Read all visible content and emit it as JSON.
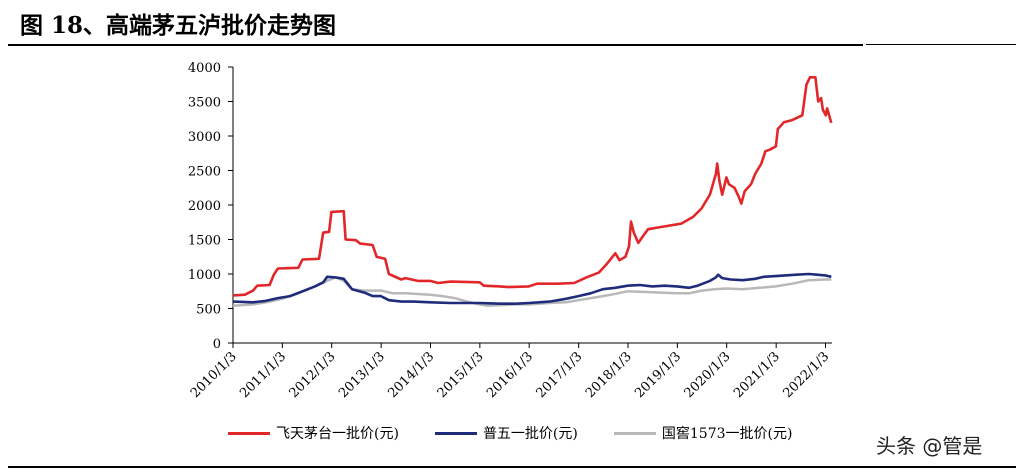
{
  "title": "图 18、高端茅五泸批价走势图",
  "watermark": "头条 @管是",
  "colors": {
    "moutai": "#e2272a",
    "wuliangye": "#1f2c7c",
    "guojiao": "#b8b8b8"
  },
  "chart_data": {
    "type": "line",
    "title": "",
    "xlabel": "",
    "ylabel": "",
    "ylim": [
      0,
      4000
    ],
    "yticks": [
      "0",
      "500",
      "1000",
      "1500",
      "2000",
      "2500",
      "3000",
      "3500",
      "4000"
    ],
    "xlim": [
      "2010-01-03",
      "2022-02-20"
    ],
    "xticks": [
      "2010/1/3",
      "2011/1/3",
      "2012/1/3",
      "2013/1/3",
      "2014/1/3",
      "2015/1/3",
      "2016/1/3",
      "2017/1/3",
      "2018/1/3",
      "2019/1/3",
      "2020/1/3",
      "2021/1/3",
      "2022/1/3"
    ],
    "grid": false,
    "legend_position": "bottom",
    "series": [
      {
        "name": "飞天茅台一批价(元)",
        "color": "#e2272a",
        "points": [
          [
            "2010-01-03",
            690
          ],
          [
            "2010-04-01",
            700
          ],
          [
            "2010-06-01",
            760
          ],
          [
            "2010-07-01",
            830
          ],
          [
            "2010-10-01",
            840
          ],
          [
            "2010-11-01",
            990
          ],
          [
            "2010-12-01",
            1080
          ],
          [
            "2011-05-01",
            1090
          ],
          [
            "2011-06-01",
            1210
          ],
          [
            "2011-10-01",
            1220
          ],
          [
            "2011-11-01",
            1600
          ],
          [
            "2011-12-15",
            1610
          ],
          [
            "2012-01-01",
            1900
          ],
          [
            "2012-04-01",
            1910
          ],
          [
            "2012-04-15",
            1500
          ],
          [
            "2012-07-01",
            1490
          ],
          [
            "2012-08-01",
            1440
          ],
          [
            "2012-11-01",
            1420
          ],
          [
            "2012-12-01",
            1250
          ],
          [
            "2013-02-01",
            1220
          ],
          [
            "2013-03-01",
            1000
          ],
          [
            "2013-06-01",
            920
          ],
          [
            "2013-07-01",
            940
          ],
          [
            "2013-10-01",
            900
          ],
          [
            "2014-01-01",
            900
          ],
          [
            "2014-03-01",
            870
          ],
          [
            "2014-06-01",
            890
          ],
          [
            "2015-01-01",
            880
          ],
          [
            "2015-02-01",
            830
          ],
          [
            "2015-06-01",
            820
          ],
          [
            "2015-08-01",
            810
          ],
          [
            "2016-01-01",
            820
          ],
          [
            "2016-03-01",
            860
          ],
          [
            "2016-08-01",
            860
          ],
          [
            "2016-12-01",
            870
          ],
          [
            "2017-03-01",
            950
          ],
          [
            "2017-06-01",
            1020
          ],
          [
            "2017-08-01",
            1150
          ],
          [
            "2017-10-01",
            1300
          ],
          [
            "2017-11-01",
            1200
          ],
          [
            "2017-12-15",
            1250
          ],
          [
            "2018-01-10",
            1400
          ],
          [
            "2018-01-25",
            1760
          ],
          [
            "2018-02-15",
            1600
          ],
          [
            "2018-03-20",
            1450
          ],
          [
            "2018-05-01",
            1570
          ],
          [
            "2018-06-01",
            1650
          ],
          [
            "2018-10-01",
            1690
          ],
          [
            "2019-01-01",
            1720
          ],
          [
            "2019-02-01",
            1730
          ],
          [
            "2019-05-01",
            1830
          ],
          [
            "2019-07-01",
            1950
          ],
          [
            "2019-09-01",
            2150
          ],
          [
            "2019-10-15",
            2450
          ],
          [
            "2019-10-25",
            2600
          ],
          [
            "2019-11-10",
            2350
          ],
          [
            "2019-12-01",
            2150
          ],
          [
            "2020-01-01",
            2400
          ],
          [
            "2020-01-20",
            2300
          ],
          [
            "2020-03-01",
            2250
          ],
          [
            "2020-04-01",
            2120
          ],
          [
            "2020-04-20",
            2020
          ],
          [
            "2020-05-15",
            2200
          ],
          [
            "2020-07-01",
            2300
          ],
          [
            "2020-08-01",
            2450
          ],
          [
            "2020-09-15",
            2600
          ],
          [
            "2020-10-15",
            2780
          ],
          [
            "2020-11-15",
            2800
          ],
          [
            "2021-01-01",
            2850
          ],
          [
            "2021-01-15",
            3100
          ],
          [
            "2021-03-01",
            3200
          ],
          [
            "2021-05-01",
            3230
          ],
          [
            "2021-07-15",
            3300
          ],
          [
            "2021-08-15",
            3750
          ],
          [
            "2021-09-10",
            3850
          ],
          [
            "2021-10-20",
            3850
          ],
          [
            "2021-11-10",
            3500
          ],
          [
            "2021-12-01",
            3550
          ],
          [
            "2021-12-15",
            3380
          ],
          [
            "2022-01-05",
            3300
          ],
          [
            "2022-01-15",
            3400
          ],
          [
            "2022-02-15",
            3190
          ]
        ]
      },
      {
        "name": "普五一批价(元)",
        "color": "#1f2c7c",
        "points": [
          [
            "2010-01-03",
            600
          ],
          [
            "2010-06-01",
            590
          ],
          [
            "2010-09-01",
            610
          ],
          [
            "2010-12-01",
            650
          ],
          [
            "2011-03-01",
            680
          ],
          [
            "2011-06-01",
            750
          ],
          [
            "2011-09-01",
            820
          ],
          [
            "2011-11-01",
            880
          ],
          [
            "2011-12-01",
            960
          ],
          [
            "2012-02-01",
            950
          ],
          [
            "2012-04-01",
            930
          ],
          [
            "2012-06-01",
            780
          ],
          [
            "2012-09-01",
            730
          ],
          [
            "2012-11-01",
            680
          ],
          [
            "2013-01-01",
            680
          ],
          [
            "2013-03-01",
            620
          ],
          [
            "2013-06-01",
            600
          ],
          [
            "2013-09-01",
            600
          ],
          [
            "2014-01-01",
            590
          ],
          [
            "2014-06-01",
            580
          ],
          [
            "2014-10-01",
            580
          ],
          [
            "2015-01-01",
            580
          ],
          [
            "2015-06-01",
            570
          ],
          [
            "2015-10-01",
            570
          ],
          [
            "2016-01-01",
            580
          ],
          [
            "2016-06-01",
            600
          ],
          [
            "2016-10-01",
            640
          ],
          [
            "2017-01-01",
            680
          ],
          [
            "2017-04-01",
            720
          ],
          [
            "2017-07-01",
            780
          ],
          [
            "2017-10-01",
            800
          ],
          [
            "2018-01-01",
            830
          ],
          [
            "2018-04-01",
            840
          ],
          [
            "2018-07-01",
            820
          ],
          [
            "2018-10-01",
            830
          ],
          [
            "2019-01-01",
            820
          ],
          [
            "2019-04-01",
            800
          ],
          [
            "2019-06-01",
            830
          ],
          [
            "2019-09-01",
            900
          ],
          [
            "2019-10-15",
            950
          ],
          [
            "2019-11-01",
            990
          ],
          [
            "2019-12-01",
            940
          ],
          [
            "2020-02-01",
            920
          ],
          [
            "2020-05-01",
            910
          ],
          [
            "2020-08-01",
            930
          ],
          [
            "2020-10-01",
            960
          ],
          [
            "2021-01-01",
            970
          ],
          [
            "2021-06-01",
            990
          ],
          [
            "2021-09-01",
            1000
          ],
          [
            "2021-11-01",
            990
          ],
          [
            "2022-01-01",
            980
          ],
          [
            "2022-02-15",
            960
          ]
        ]
      },
      {
        "name": "国窖1573一批价(元)",
        "color": "#b8b8b8",
        "points": [
          [
            "2010-01-03",
            540
          ],
          [
            "2010-06-01",
            560
          ],
          [
            "2010-10-01",
            600
          ],
          [
            "2011-01-01",
            640
          ],
          [
            "2011-05-01",
            720
          ],
          [
            "2011-09-01",
            820
          ],
          [
            "2011-12-01",
            900
          ],
          [
            "2012-02-01",
            950
          ],
          [
            "2012-04-01",
            900
          ],
          [
            "2012-06-01",
            780
          ],
          [
            "2012-09-01",
            760
          ],
          [
            "2013-01-01",
            760
          ],
          [
            "2013-04-01",
            720
          ],
          [
            "2013-07-01",
            720
          ],
          [
            "2014-01-01",
            700
          ],
          [
            "2014-04-01",
            680
          ],
          [
            "2014-07-01",
            650
          ],
          [
            "2014-10-01",
            600
          ],
          [
            "2015-01-01",
            560
          ],
          [
            "2015-03-01",
            540
          ],
          [
            "2015-06-01",
            550
          ],
          [
            "2015-10-01",
            560
          ],
          [
            "2016-01-01",
            560
          ],
          [
            "2016-06-01",
            580
          ],
          [
            "2016-10-01",
            590
          ],
          [
            "2017-01-01",
            620
          ],
          [
            "2017-05-01",
            660
          ],
          [
            "2017-09-01",
            700
          ],
          [
            "2018-01-01",
            750
          ],
          [
            "2018-05-01",
            740
          ],
          [
            "2018-09-01",
            730
          ],
          [
            "2019-01-01",
            720
          ],
          [
            "2019-04-01",
            720
          ],
          [
            "2019-07-01",
            760
          ],
          [
            "2019-10-01",
            780
          ],
          [
            "2020-01-01",
            790
          ],
          [
            "2020-05-01",
            780
          ],
          [
            "2020-09-01",
            800
          ],
          [
            "2021-01-01",
            820
          ],
          [
            "2021-05-01",
            860
          ],
          [
            "2021-09-01",
            910
          ],
          [
            "2022-01-01",
            920
          ],
          [
            "2022-02-15",
            920
          ]
        ]
      }
    ]
  }
}
